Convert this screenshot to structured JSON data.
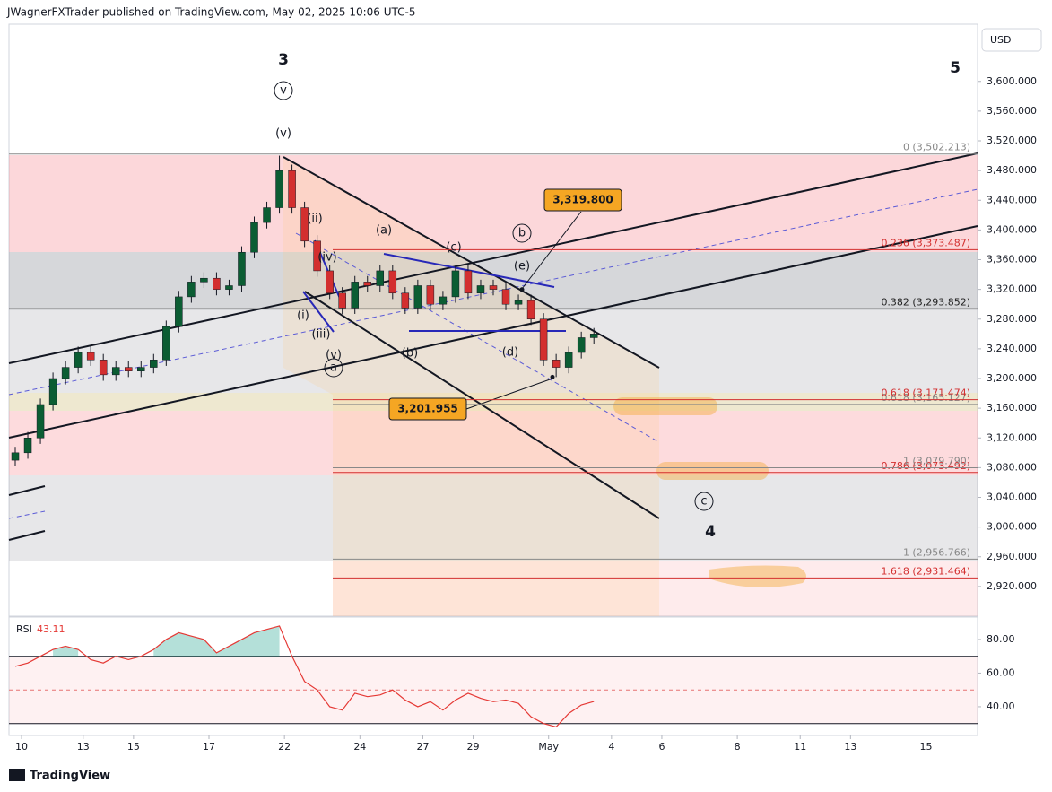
{
  "header": "JWagnerFXTrader published on TradingView.com, May 02, 2025 10:06 UTC-5",
  "footer": "TradingView",
  "currency": "USD",
  "chart_data": {
    "type": "candlestick",
    "up_color": "#0b5d33",
    "down_color": "#d32f2f",
    "x": [
      0,
      1,
      2,
      3,
      4,
      5,
      6,
      7,
      8,
      9,
      10,
      11,
      12,
      13,
      14,
      15,
      16,
      17,
      18,
      19,
      20,
      21,
      22,
      23,
      24,
      25,
      26,
      27,
      28,
      29,
      30,
      31,
      32,
      33,
      34,
      35,
      36,
      37,
      38,
      39,
      40,
      41,
      42,
      43,
      44,
      45,
      46
    ],
    "open": [
      3090,
      3100,
      3120,
      3165,
      3200,
      3215,
      3235,
      3225,
      3205,
      3215,
      3210,
      3215,
      3225,
      3270,
      3310,
      3330,
      3335,
      3320,
      3325,
      3370,
      3410,
      3430,
      3480,
      3430,
      3385,
      3345,
      3315,
      3295,
      3330,
      3325,
      3345,
      3315,
      3295,
      3325,
      3300,
      3310,
      3345,
      3315,
      3325,
      3320,
      3300,
      3305,
      3280,
      3225,
      3215,
      3235,
      3255
    ],
    "high": [
      3108,
      3128,
      3173,
      3208,
      3223,
      3243,
      3243,
      3233,
      3223,
      3223,
      3223,
      3233,
      3278,
      3318,
      3338,
      3343,
      3343,
      3333,
      3378,
      3418,
      3438,
      3500,
      3488,
      3438,
      3393,
      3353,
      3323,
      3338,
      3338,
      3353,
      3353,
      3323,
      3333,
      3333,
      3318,
      3353,
      3353,
      3333,
      3333,
      3328,
      3313,
      3313,
      3288,
      3233,
      3243,
      3263,
      3268
    ],
    "low": [
      3082,
      3092,
      3112,
      3157,
      3192,
      3207,
      3217,
      3197,
      3197,
      3202,
      3202,
      3207,
      3217,
      3262,
      3302,
      3322,
      3312,
      3312,
      3317,
      3362,
      3402,
      3422,
      3422,
      3377,
      3337,
      3307,
      3287,
      3287,
      3317,
      3317,
      3307,
      3287,
      3287,
      3292,
      3292,
      3302,
      3307,
      3307,
      3312,
      3292,
      3292,
      3272,
      3217,
      3201.955,
      3207,
      3227,
      3247
    ],
    "close": [
      3100,
      3120,
      3165,
      3200,
      3215,
      3235,
      3225,
      3205,
      3215,
      3210,
      3215,
      3225,
      3270,
      3310,
      3330,
      3335,
      3320,
      3325,
      3370,
      3410,
      3430,
      3480,
      3430,
      3385,
      3345,
      3315,
      3295,
      3330,
      3325,
      3345,
      3315,
      3295,
      3325,
      3300,
      3310,
      3345,
      3315,
      3325,
      3320,
      3300,
      3305,
      3280,
      3225,
      3215,
      3235,
      3255,
      3260
    ],
    "xlim": [
      -0.5,
      76.5
    ],
    "xticks": [
      {
        "value": 0.5,
        "label": "10"
      },
      {
        "value": 5.4,
        "label": "13"
      },
      {
        "value": 9.4,
        "label": "15"
      },
      {
        "value": 15.4,
        "label": "17"
      },
      {
        "value": 21.4,
        "label": "22"
      },
      {
        "value": 27.4,
        "label": "24"
      },
      {
        "value": 32.4,
        "label": "27"
      },
      {
        "value": 36.4,
        "label": "29"
      },
      {
        "value": 42.4,
        "label": "May"
      },
      {
        "value": 47.4,
        "label": "4"
      },
      {
        "value": 51.4,
        "label": "6"
      },
      {
        "value": 57.4,
        "label": "8"
      },
      {
        "value": 62.4,
        "label": "11"
      },
      {
        "value": 66.4,
        "label": "13"
      },
      {
        "value": 72.4,
        "label": "15"
      }
    ],
    "ylim": [
      2880,
      3677
    ],
    "yticks": [
      {
        "value": 2920,
        "label": "2,920.000"
      },
      {
        "value": 2960,
        "label": "2,960.000"
      },
      {
        "value": 3000,
        "label": "3,000.000"
      },
      {
        "value": 3040,
        "label": "3,040.000"
      },
      {
        "value": 3080,
        "label": "3,080.000"
      },
      {
        "value": 3120,
        "label": "3,120.000"
      },
      {
        "value": 3160,
        "label": "3,160.000"
      },
      {
        "value": 3200,
        "label": "3,200.000"
      },
      {
        "value": 3240,
        "label": "3,240.000"
      },
      {
        "value": 3280,
        "label": "3,280.000"
      },
      {
        "value": 3320,
        "label": "3,320.000"
      },
      {
        "value": 3360,
        "label": "3,360.000"
      },
      {
        "value": 3400,
        "label": "3,400.000"
      },
      {
        "value": 3440,
        "label": "3,440.000"
      },
      {
        "value": 3480,
        "label": "3,480.000"
      },
      {
        "value": 3520,
        "label": "3,520.000"
      },
      {
        "value": 3560,
        "label": "3,560.000"
      },
      {
        "value": 3600,
        "label": "3,600.000"
      }
    ],
    "fib_levels": [
      {
        "label": "0 (3,502.213)",
        "value": 3502.213,
        "color": "#888888"
      },
      {
        "label": "0.236 (3,373.487)",
        "value": 3373.487,
        "color": "#d32f2f"
      },
      {
        "label": "0.382 (3,293.852)",
        "value": 3293.852,
        "color": "#222222"
      },
      {
        "label": "0.618 (3,165.127)",
        "value": 3165.127,
        "color": "#888888"
      },
      {
        "label": "0.618 (3,171.474)",
        "value": 3171.474,
        "color": "#d32f2f"
      },
      {
        "label": "0.786 (3,073.492)",
        "value": 3073.492,
        "color": "#d32f2f"
      },
      {
        "label": "1 (3,079.790)",
        "value": 3079.79,
        "color": "#888888"
      },
      {
        "label": "1 (2,956.766)",
        "value": 2956.766,
        "color": "#888888"
      },
      {
        "label": "1.618 (2,931.464)",
        "value": 2931.464,
        "color": "#d32f2f"
      }
    ],
    "price_badges": [
      {
        "label": "3,319.800",
        "value": 3319.8
      },
      {
        "label": "3,201.955",
        "value": 3201.955
      }
    ],
    "wave_labels": [
      "3",
      "v",
      "(v)",
      "(ii)",
      "(iv)",
      "(i)",
      "(iii)",
      "(v)",
      "a",
      "(a)",
      "(c)",
      "b",
      "(e)",
      "(b)",
      "(d)",
      "c",
      "4",
      "5"
    ],
    "rsi": {
      "label": "RSI",
      "value_label": "43.11",
      "color": "#e53935",
      "values": [
        64,
        66,
        70,
        74,
        76,
        74,
        68,
        66,
        70,
        68,
        70,
        74,
        80,
        84,
        82,
        80,
        72,
        76,
        80,
        84,
        86,
        88,
        70,
        55,
        50,
        40,
        38,
        48,
        46,
        47,
        50,
        44,
        40,
        43,
        38,
        44,
        48,
        45,
        43,
        44,
        42,
        34,
        30,
        28,
        36,
        41,
        43.11
      ],
      "ylim": [
        22.9,
        93.3
      ],
      "bands": [
        30,
        70
      ],
      "mid": 50,
      "yticks": [
        {
          "value": 40,
          "label": "40.00"
        },
        {
          "value": 60,
          "label": "60.00"
        },
        {
          "value": 80,
          "label": "80.00"
        }
      ]
    }
  }
}
